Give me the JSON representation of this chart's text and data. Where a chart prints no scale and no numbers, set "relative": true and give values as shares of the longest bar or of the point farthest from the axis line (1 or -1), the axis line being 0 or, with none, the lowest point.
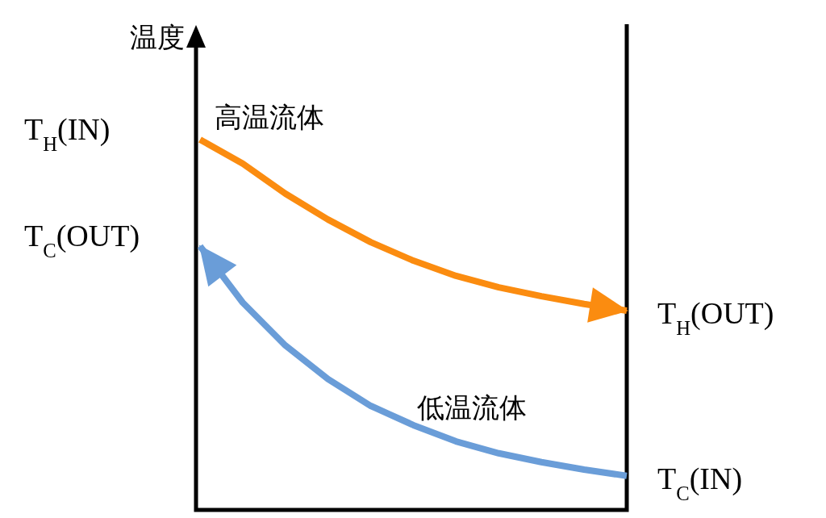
{
  "chart_data": {
    "type": "line",
    "relative": true,
    "categories": [
      null,
      null,
      null,
      null,
      null,
      null,
      null,
      null,
      null,
      null,
      null
    ],
    "series": [
      {
        "name": "高温流体",
        "color": "#fb8c10",
        "values": [
          1,
          0.935,
          0.854,
          0.784,
          0.723,
          0.673,
          0.632,
          0.601,
          0.577,
          0.556,
          0.538
        ]
      },
      {
        "name": "低温流体",
        "color": "#6a9dd8",
        "values": [
          0.712,
          0.56,
          0.444,
          0.353,
          0.281,
          0.229,
          0.185,
          0.153,
          0.129,
          0.109,
          0.092
        ]
      }
    ],
    "annotations": [
      "温度",
      "T$_{H}$(IN)",
      "T$_{C}$(OUT)",
      "T$_{H}$(OUT)",
      "T$_{C}$(IN)"
    ]
  }
}
